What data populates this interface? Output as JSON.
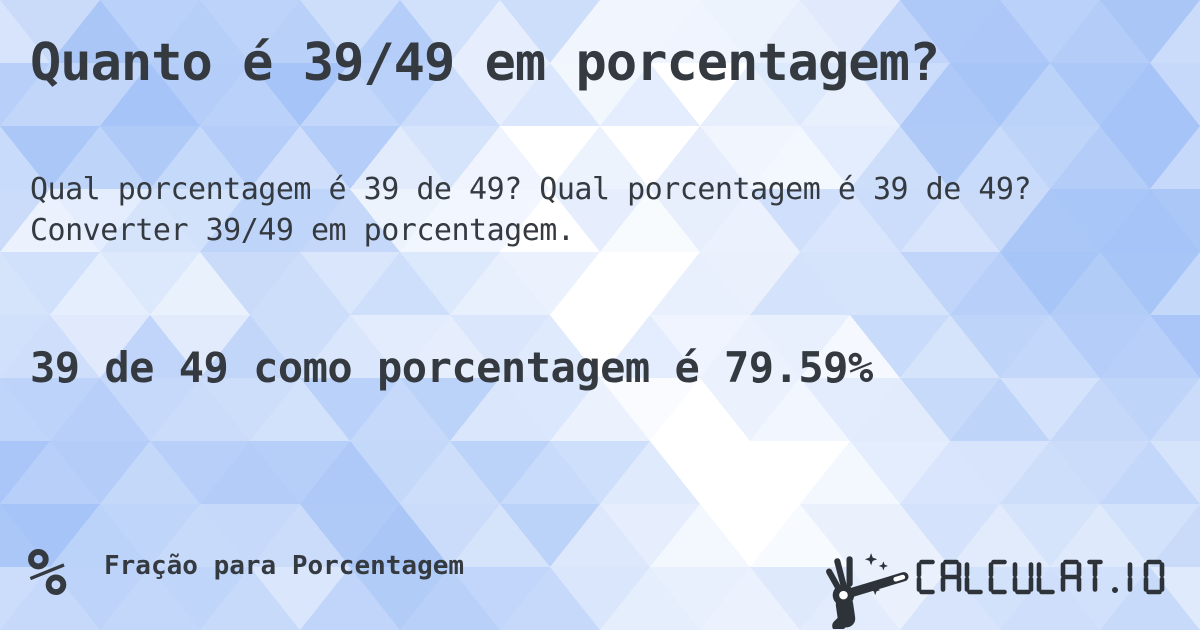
{
  "header": {
    "title": "Quanto é 39/49 em porcentagem?"
  },
  "body": {
    "description": "Qual porcentagem é 39 de 49? Qual porcentagem é 39 de 49? Converter 39/49 em porcentagem.",
    "answer": "39 de 49 como porcentagem é 79.59%"
  },
  "footer": {
    "category": {
      "icon": "percent-icon",
      "icon_glyph": "%",
      "label": "Fração para Porcentagem"
    },
    "brand": {
      "icon": "magic-wand-hand-icon",
      "name": "CALCULAT.IO"
    }
  },
  "colors": {
    "text": "#343a40",
    "segment_text": "#2e333a",
    "pattern_hue_blue": "#a7c7f3",
    "pattern_white": "#ffffff",
    "background_base": "#d9e7fb"
  }
}
